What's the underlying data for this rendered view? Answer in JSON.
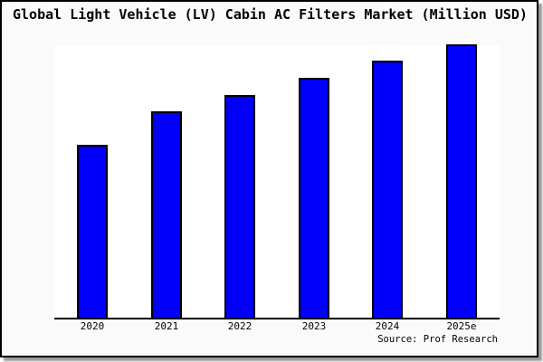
{
  "source": "Source: Prof Research",
  "chart_data": {
    "type": "bar",
    "title": "Global Light Vehicle (LV) Cabin AC Filters Market (Million USD)",
    "categories": [
      "2020",
      "2021",
      "2022",
      "2023",
      "2024",
      "2025e"
    ],
    "values": [
      62.8,
      75.1,
      81.1,
      87.4,
      93.7,
      99.7
    ],
    "xlabel": "",
    "ylabel": "",
    "ylim": [
      0,
      100
    ],
    "y_axis_labels_shown": false,
    "grid": false,
    "legend": false,
    "bar_color": "#0000fa",
    "bar_edge_color": "#000000",
    "plot_background": "#ffffff",
    "figure_background": "#fafafa"
  }
}
